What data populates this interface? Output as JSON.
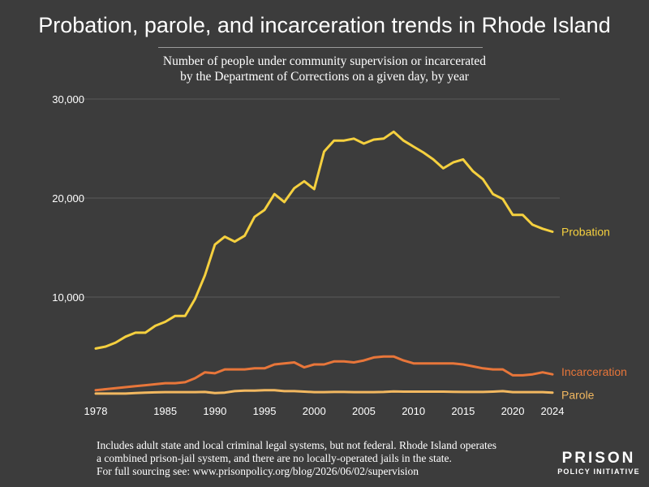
{
  "title": "Probation, parole, and incarceration trends in Rhode Island",
  "subtitle_lines": [
    "Number of people under community supervision or incarcerated",
    "by the Department of Corrections on a given day, by year"
  ],
  "footnote_lines": [
    "Includes adult state and local criminal legal systems, but not federal. Rhode Island operates",
    "a combined prison-jail system, and there are no locally-operated jails in the state.",
    "For full sourcing see: www.prisonpolicy.org/blog/2026/06/02/supervision"
  ],
  "logo": {
    "main": "PRISON",
    "sub": "POLICY INITIATIVE"
  },
  "colors": {
    "background": "#3c3c3c",
    "grid": "#5a5a5a",
    "probation": "#f5d03f",
    "incarceration": "#e8763a",
    "parole": "#f2b860"
  },
  "chart_data": {
    "type": "line",
    "title": "Probation, parole, and incarceration trends in Rhode Island",
    "xlabel": "",
    "ylabel": "",
    "xlim": [
      1978,
      2024
    ],
    "ylim": [
      0,
      30000
    ],
    "yticks": [
      10000,
      20000,
      30000
    ],
    "ytick_labels": [
      "10,000",
      "20,000",
      "30,000"
    ],
    "xticks": [
      1978,
      1985,
      1990,
      1995,
      2000,
      2005,
      2010,
      2015,
      2020,
      2024
    ],
    "grid": true,
    "legend": "inline labels at line ends",
    "x": [
      1978,
      1979,
      1980,
      1981,
      1982,
      1983,
      1984,
      1985,
      1986,
      1987,
      1988,
      1989,
      1990,
      1991,
      1992,
      1993,
      1994,
      1995,
      1996,
      1997,
      1998,
      1999,
      2000,
      2001,
      2002,
      2003,
      2004,
      2005,
      2006,
      2007,
      2008,
      2009,
      2010,
      2011,
      2012,
      2013,
      2014,
      2015,
      2016,
      2017,
      2018,
      2019,
      2020,
      2021,
      2022,
      2023,
      2024
    ],
    "series": [
      {
        "name": "Probation",
        "color": "#f5d03f",
        "values": [
          4800,
          5000,
          5400,
          6000,
          6400,
          6400,
          7100,
          7500,
          8100,
          8100,
          9800,
          12200,
          15300,
          16100,
          15600,
          16200,
          18100,
          18800,
          20400,
          19600,
          21000,
          21700,
          20900,
          24700,
          25800,
          25800,
          26000,
          25500,
          25900,
          26000,
          26700,
          25800,
          25200,
          24600,
          23900,
          23000,
          23600,
          23900,
          22700,
          21900,
          20400,
          19900,
          18300,
          18300,
          17300,
          16900,
          16600
        ]
      },
      {
        "name": "Incarceration",
        "color": "#e8763a",
        "values": [
          600,
          700,
          800,
          900,
          1000,
          1100,
          1200,
          1300,
          1300,
          1400,
          1800,
          2400,
          2300,
          2700,
          2700,
          2700,
          2800,
          2800,
          3200,
          3300,
          3400,
          2900,
          3200,
          3200,
          3500,
          3500,
          3400,
          3600,
          3900,
          4000,
          4000,
          3600,
          3300,
          3300,
          3300,
          3300,
          3300,
          3200,
          3000,
          2800,
          2700,
          2700,
          2100,
          2100,
          2200,
          2400,
          2200
        ]
      },
      {
        "name": "Parole",
        "color": "#f2b860",
        "values": [
          250,
          250,
          250,
          250,
          300,
          350,
          380,
          400,
          400,
          400,
          400,
          420,
          300,
          350,
          500,
          550,
          550,
          600,
          600,
          500,
          500,
          450,
          400,
          400,
          420,
          420,
          400,
          400,
          400,
          420,
          470,
          450,
          450,
          450,
          450,
          450,
          430,
          420,
          420,
          420,
          450,
          500,
          400,
          400,
          400,
          400,
          350
        ]
      }
    ]
  }
}
